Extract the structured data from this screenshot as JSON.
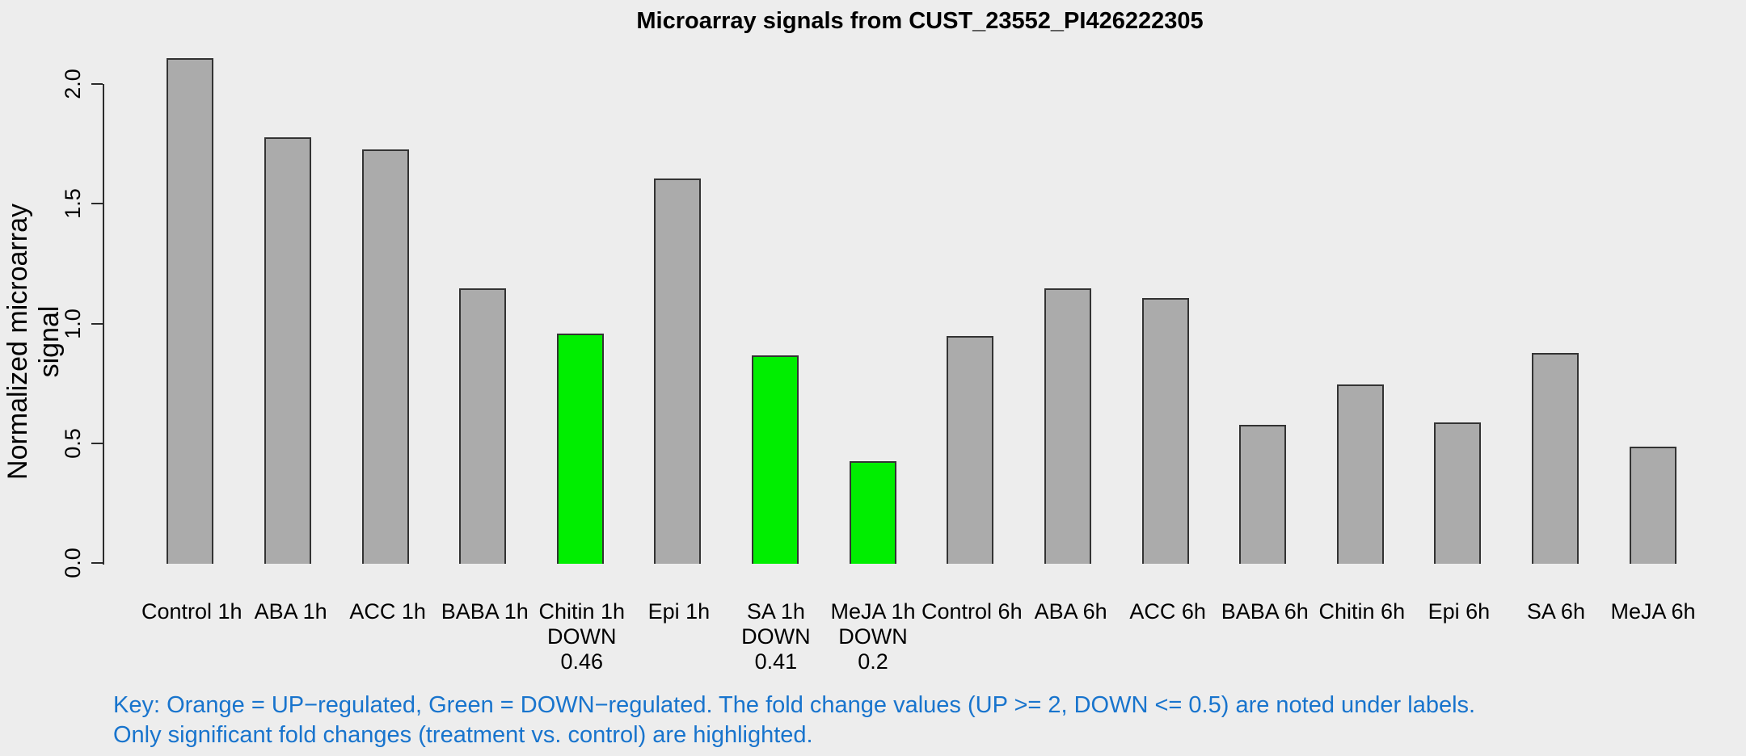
{
  "chart_data": {
    "type": "bar",
    "title": "Microarray signals from CUST_23552_PI426222305",
    "ylabel": "Normalized microarray signal",
    "xlabel": "",
    "ylim": [
      0,
      2.0
    ],
    "yticks": [
      "0.0",
      "0.5",
      "1.0",
      "1.5",
      "2.0"
    ],
    "grid": false,
    "legend": "none",
    "background_color": "#EDEDED",
    "bar_colors": {
      "normal": "#ABABAB",
      "down": "#00EE00",
      "up": "#FFA500",
      "border": "#333333"
    },
    "categories": [
      "Control 1h",
      "ABA 1h",
      "ACC 1h",
      "BABA 1h",
      "Chitin 1h",
      "Epi 1h",
      "SA 1h",
      "MeJA 1h",
      "Control 6h",
      "ABA 6h",
      "ACC 6h",
      "BABA 6h",
      "Chitin 6h",
      "Epi 6h",
      "SA 6h",
      "MeJA 6h"
    ],
    "bars": [
      {
        "label": "Control 1h",
        "value": 2.11,
        "state": "normal",
        "sublabel": "",
        "fold": ""
      },
      {
        "label": "ABA 1h",
        "value": 1.78,
        "state": "normal",
        "sublabel": "",
        "fold": ""
      },
      {
        "label": "ACC 1h",
        "value": 1.73,
        "state": "normal",
        "sublabel": "",
        "fold": ""
      },
      {
        "label": "BABA 1h",
        "value": 1.15,
        "state": "normal",
        "sublabel": "",
        "fold": ""
      },
      {
        "label": "Chitin 1h",
        "value": 0.96,
        "state": "down",
        "sublabel": "DOWN",
        "fold": "0.46"
      },
      {
        "label": "Epi 1h",
        "value": 1.61,
        "state": "normal",
        "sublabel": "",
        "fold": ""
      },
      {
        "label": "SA 1h",
        "value": 0.87,
        "state": "down",
        "sublabel": "DOWN",
        "fold": "0.41"
      },
      {
        "label": "MeJA 1h",
        "value": 0.43,
        "state": "down",
        "sublabel": "DOWN",
        "fold": "0.2"
      },
      {
        "label": "Control 6h",
        "value": 0.95,
        "state": "normal",
        "sublabel": "",
        "fold": ""
      },
      {
        "label": "ABA 6h",
        "value": 1.15,
        "state": "normal",
        "sublabel": "",
        "fold": ""
      },
      {
        "label": "ACC 6h",
        "value": 1.11,
        "state": "normal",
        "sublabel": "",
        "fold": ""
      },
      {
        "label": "BABA 6h",
        "value": 0.58,
        "state": "normal",
        "sublabel": "",
        "fold": ""
      },
      {
        "label": "Chitin 6h",
        "value": 0.75,
        "state": "normal",
        "sublabel": "",
        "fold": ""
      },
      {
        "label": "Epi 6h",
        "value": 0.59,
        "state": "normal",
        "sublabel": "",
        "fold": ""
      },
      {
        "label": "SA 6h",
        "value": 0.88,
        "state": "normal",
        "sublabel": "",
        "fold": ""
      },
      {
        "label": "MeJA 6h",
        "value": 0.49,
        "state": "normal",
        "sublabel": "",
        "fold": ""
      }
    ]
  },
  "footer": {
    "key_line1": "Key: Orange = UP−regulated, Green = DOWN−regulated. The fold change values (UP >= 2, DOWN <= 0.5) are noted under labels.",
    "key_line2": "Only significant fold changes (treatment vs. control) are highlighted.",
    "key_color": "#1874CD"
  }
}
